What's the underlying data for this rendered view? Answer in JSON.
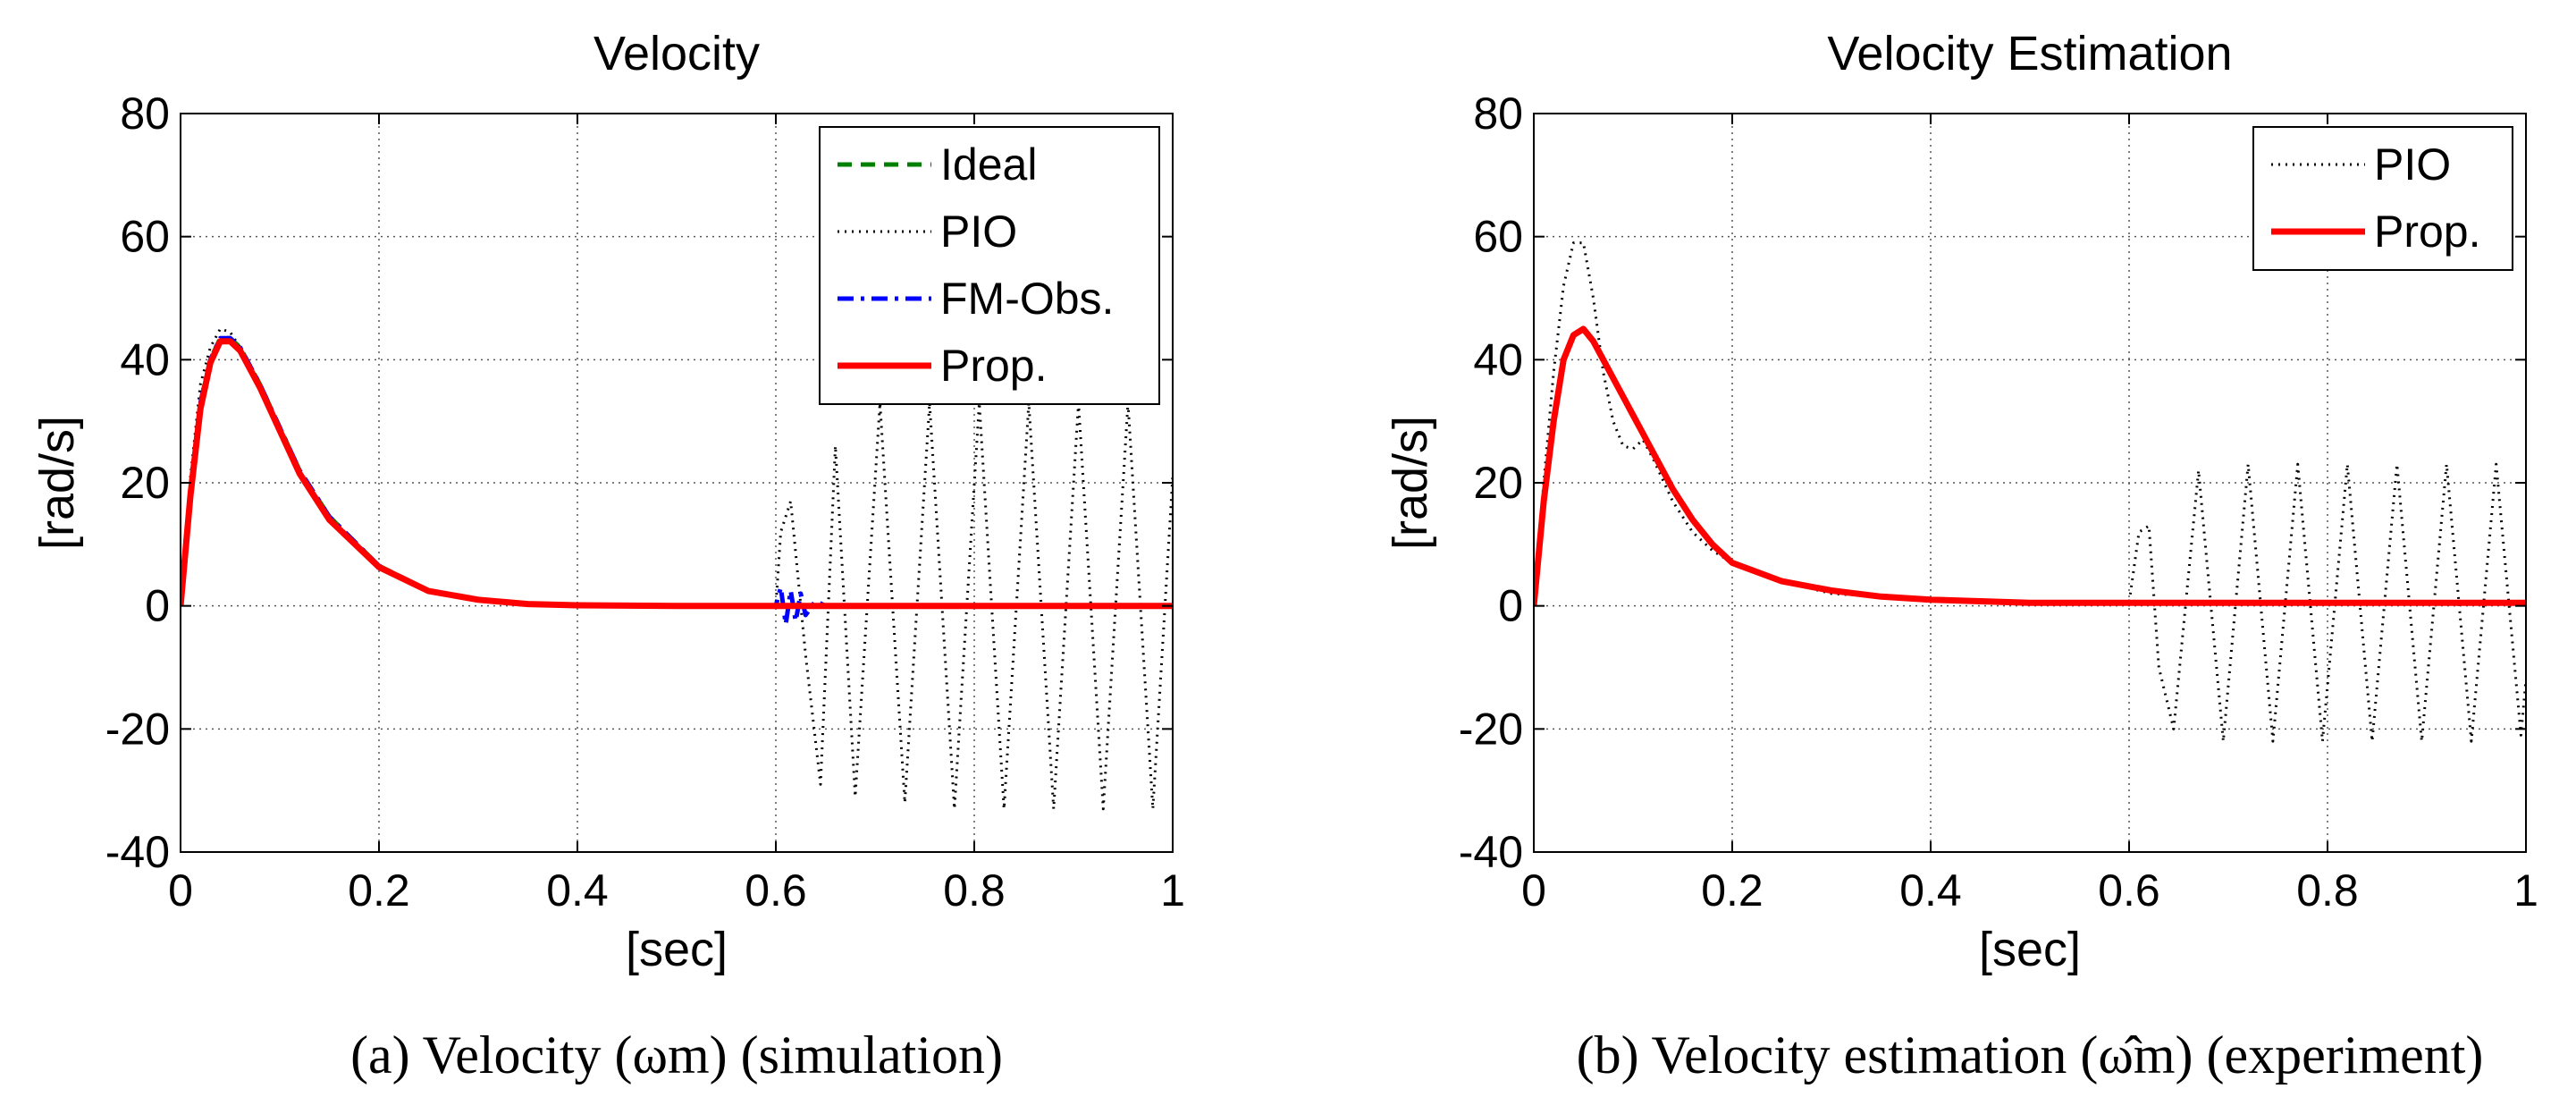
{
  "chart_data": [
    {
      "type": "line",
      "title": "Velocity",
      "xlabel": "[sec]",
      "ylabel": "[rad/s]",
      "xlim": [
        0,
        1
      ],
      "ylim": [
        -40,
        80
      ],
      "xticks": [
        0,
        0.2,
        0.4,
        0.6,
        0.8,
        1
      ],
      "xtick_labels": [
        "0",
        "0.2",
        "0.4",
        "0.6",
        "0.8",
        "1"
      ],
      "yticks": [
        -40,
        -20,
        0,
        20,
        40,
        60,
        80
      ],
      "ytick_labels": [
        "-40",
        "-20",
        "0",
        "20",
        "40",
        "60",
        "80"
      ],
      "grid": true,
      "legend_position": "top-right",
      "caption": "(a)  Velocity (ωm) (simulation)",
      "series": [
        {
          "name": "Ideal",
          "color": "#008000",
          "style": "dashed",
          "x": [
            0,
            0.01,
            0.02,
            0.03,
            0.04,
            0.05,
            0.06,
            0.08,
            0.1,
            0.12,
            0.15,
            0.2,
            0.25,
            0.3,
            0.35,
            0.4,
            0.5,
            0.6,
            0.7,
            0.8,
            0.9,
            1.0
          ],
          "values": [
            0,
            19,
            33,
            40,
            43.5,
            43.5,
            42,
            36,
            29,
            22,
            14.5,
            6.5,
            2.5,
            1,
            0.3,
            0.1,
            0,
            0,
            0,
            0,
            0,
            0
          ]
        },
        {
          "name": "PIO",
          "color": "#000000",
          "style": "dotted",
          "x": [
            0,
            0.01,
            0.02,
            0.03,
            0.04,
            0.05,
            0.06,
            0.08,
            0.1,
            0.12,
            0.15,
            0.2,
            0.25,
            0.3,
            0.35,
            0.4,
            0.5,
            0.6,
            0.605,
            0.615,
            0.63,
            0.645,
            0.66,
            0.68,
            0.705,
            0.73,
            0.755,
            0.78,
            0.805,
            0.83,
            0.855,
            0.88,
            0.905,
            0.93,
            0.955,
            0.98,
            1.0
          ],
          "values": [
            0,
            21,
            36,
            42,
            45,
            44.5,
            42,
            36,
            29,
            22,
            14.5,
            6.5,
            2.5,
            1,
            0.3,
            0.1,
            0,
            0,
            12,
            17,
            -8,
            -29,
            26,
            -31,
            33,
            -32,
            33,
            -33,
            33,
            -33,
            33,
            -33,
            33,
            -33,
            33,
            -33,
            21
          ]
        },
        {
          "name": "FM-Obs.",
          "color": "#0000ff",
          "style": "dashdot",
          "x": [
            0,
            0.01,
            0.02,
            0.03,
            0.04,
            0.05,
            0.06,
            0.08,
            0.1,
            0.12,
            0.15,
            0.2,
            0.25,
            0.3,
            0.35,
            0.4,
            0.5,
            0.6,
            0.605,
            0.61,
            0.615,
            0.62,
            0.625,
            0.63,
            0.64,
            0.65,
            0.7,
            0.8,
            0.9,
            1.0
          ],
          "values": [
            0,
            19,
            33,
            40,
            43.5,
            43.5,
            42,
            36,
            29,
            22,
            14.5,
            6.5,
            2.5,
            1,
            0.3,
            0.1,
            0,
            0,
            3,
            -3,
            2.5,
            -2.5,
            2,
            -1.5,
            0.8,
            0,
            0,
            0,
            0,
            0
          ]
        },
        {
          "name": "Prop.",
          "color": "#ff0000",
          "style": "solid",
          "x": [
            0,
            0.01,
            0.02,
            0.03,
            0.04,
            0.05,
            0.06,
            0.08,
            0.1,
            0.12,
            0.15,
            0.2,
            0.25,
            0.3,
            0.35,
            0.4,
            0.5,
            0.6,
            0.7,
            0.8,
            0.9,
            1.0
          ],
          "values": [
            0,
            18,
            32,
            39.5,
            43,
            43,
            41.5,
            35.5,
            28.5,
            21.5,
            14,
            6.3,
            2.4,
            1,
            0.3,
            0.1,
            0,
            0,
            0,
            0,
            0,
            0
          ]
        }
      ]
    },
    {
      "type": "line",
      "title": "Velocity Estimation",
      "xlabel": "[sec]",
      "ylabel": "[rad/s]",
      "xlim": [
        0,
        1
      ],
      "ylim": [
        -40,
        80
      ],
      "xticks": [
        0,
        0.2,
        0.4,
        0.6,
        0.8,
        1
      ],
      "xtick_labels": [
        "0",
        "0.2",
        "0.4",
        "0.6",
        "0.8",
        "1"
      ],
      "yticks": [
        -40,
        -20,
        0,
        20,
        40,
        60,
        80
      ],
      "ytick_labels": [
        "-40",
        "-20",
        "0",
        "20",
        "40",
        "60",
        "80"
      ],
      "grid": true,
      "legend_position": "top-right",
      "caption": "(b)  Velocity estimation (ω̂m) (experiment)",
      "series": [
        {
          "name": "PIO",
          "color": "#000000",
          "style": "dotted",
          "x": [
            0,
            0.01,
            0.02,
            0.03,
            0.04,
            0.05,
            0.06,
            0.07,
            0.08,
            0.09,
            0.1,
            0.11,
            0.12,
            0.14,
            0.16,
            0.18,
            0.2,
            0.25,
            0.3,
            0.4,
            0.5,
            0.6,
            0.61,
            0.62,
            0.63,
            0.645,
            0.67,
            0.695,
            0.72,
            0.745,
            0.77,
            0.795,
            0.82,
            0.845,
            0.87,
            0.895,
            0.92,
            0.945,
            0.97,
            0.995,
            1.0
          ],
          "values": [
            0,
            20,
            38,
            52,
            59,
            59,
            50,
            38,
            30,
            26,
            25.5,
            27,
            24,
            17,
            12,
            9,
            7,
            4,
            2,
            1,
            0.5,
            0.5,
            12,
            13,
            -10,
            -20,
            22,
            -22,
            23,
            -22,
            23,
            -22,
            23,
            -22,
            23,
            -22,
            23,
            -22,
            23,
            -21,
            -12
          ]
        },
        {
          "name": "Prop.",
          "color": "#ff0000",
          "style": "solid",
          "x": [
            0,
            0.01,
            0.02,
            0.03,
            0.04,
            0.05,
            0.06,
            0.07,
            0.08,
            0.09,
            0.1,
            0.11,
            0.12,
            0.14,
            0.16,
            0.18,
            0.2,
            0.25,
            0.3,
            0.35,
            0.4,
            0.5,
            0.6,
            0.7,
            0.8,
            0.9,
            1.0
          ],
          "values": [
            0,
            17,
            30,
            40,
            44,
            45,
            43,
            40,
            37,
            34,
            31,
            28,
            25,
            19,
            14,
            10,
            7,
            4,
            2.5,
            1.5,
            1,
            0.5,
            0.5,
            0.5,
            0.5,
            0.5,
            0.5
          ]
        }
      ]
    }
  ]
}
